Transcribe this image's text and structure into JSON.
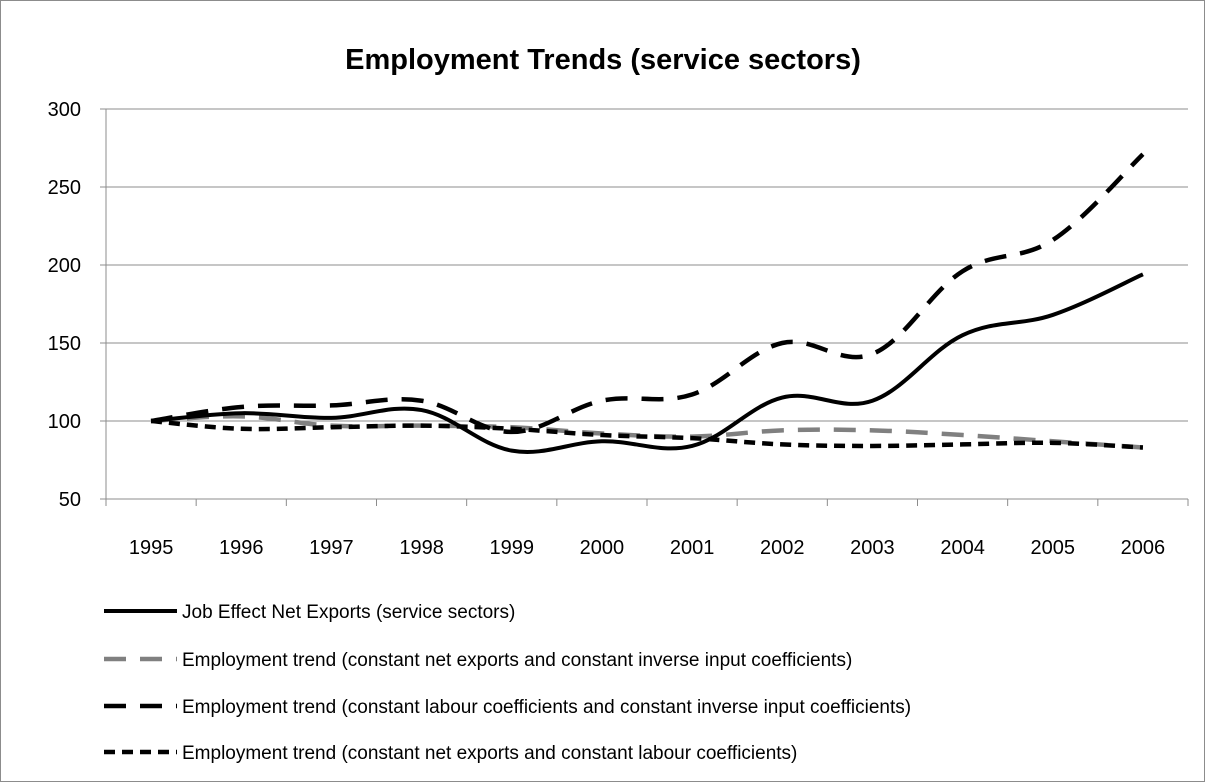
{
  "chart_data": {
    "type": "line",
    "title": "Employment Trends (service sectors)",
    "xlabel": "",
    "ylabel": "",
    "categories": [
      "1995",
      "1996",
      "1997",
      "1998",
      "1999",
      "2000",
      "2001",
      "2002",
      "2003",
      "2004",
      "2005",
      "2006"
    ],
    "ylim": [
      50,
      300
    ],
    "yticks": [
      50,
      100,
      150,
      200,
      250,
      300
    ],
    "grid": "horizontal",
    "legend_position": "bottom",
    "series": [
      {
        "name": "Job Effect Net Exports (service sectors)",
        "values": [
          100,
          105,
          102,
          107,
          81,
          87,
          84,
          115,
          113,
          155,
          168,
          194
        ],
        "color": "#000000",
        "style": "solid"
      },
      {
        "name": "Employment trend (constant net exports and constant inverse input coefficients)",
        "values": [
          100,
          103,
          97,
          97,
          96,
          92,
          90,
          94,
          94,
          91,
          87,
          83
        ],
        "color": "#808080",
        "style": "long-dash"
      },
      {
        "name": "Employment trend (constant labour coefficients and constant inverse input coefficients)",
        "values": [
          100,
          109,
          110,
          113,
          93,
          113,
          117,
          150,
          143,
          196,
          216,
          271
        ],
        "color": "#000000",
        "style": "long-dash"
      },
      {
        "name": "Employment trend (constant net exports and constant labour coefficients)",
        "values": [
          100,
          95,
          96,
          97,
          95,
          91,
          89,
          85,
          84,
          85,
          86,
          83
        ],
        "color": "#000000",
        "style": "short-dash"
      }
    ]
  }
}
